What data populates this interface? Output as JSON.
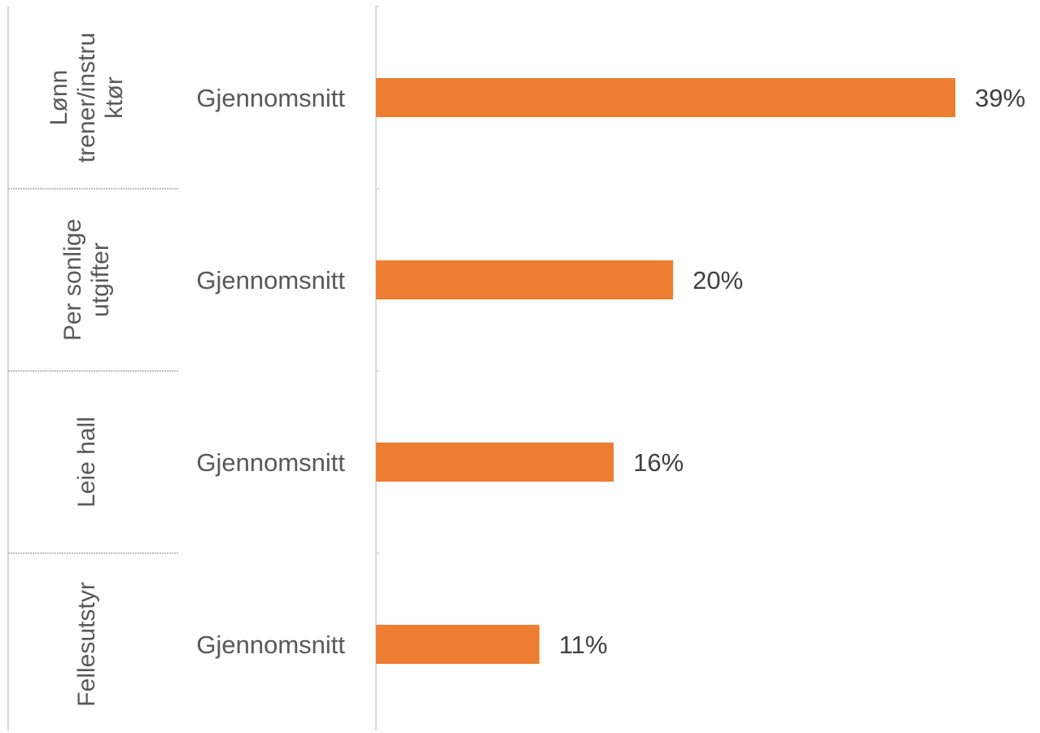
{
  "chart_data": {
    "type": "bar",
    "orientation": "horizontal",
    "groups": [
      {
        "label": [
          "Lønn",
          "trener/instru",
          "ktør"
        ],
        "category": "Gjennomsnitt",
        "value": 39,
        "value_label": "39%"
      },
      {
        "label": [
          "Per sonlige",
          "utgifter"
        ],
        "category": "Gjennomsnitt",
        "value": 20,
        "value_label": "20%"
      },
      {
        "label": [
          "Leie hall"
        ],
        "category": "Gjennomsnitt",
        "value": 16,
        "value_label": "16%"
      },
      {
        "label": [
          "Fellesutstyr"
        ],
        "category": "Gjennomsnitt",
        "value": 11,
        "value_label": "11%"
      }
    ],
    "unit": "%",
    "xlim": [
      0,
      39
    ],
    "bar_color": "#ED7D31",
    "axis_color": "#D9D9D9",
    "separator_color": "#BFBFBF",
    "grid": false,
    "legend": "none"
  }
}
